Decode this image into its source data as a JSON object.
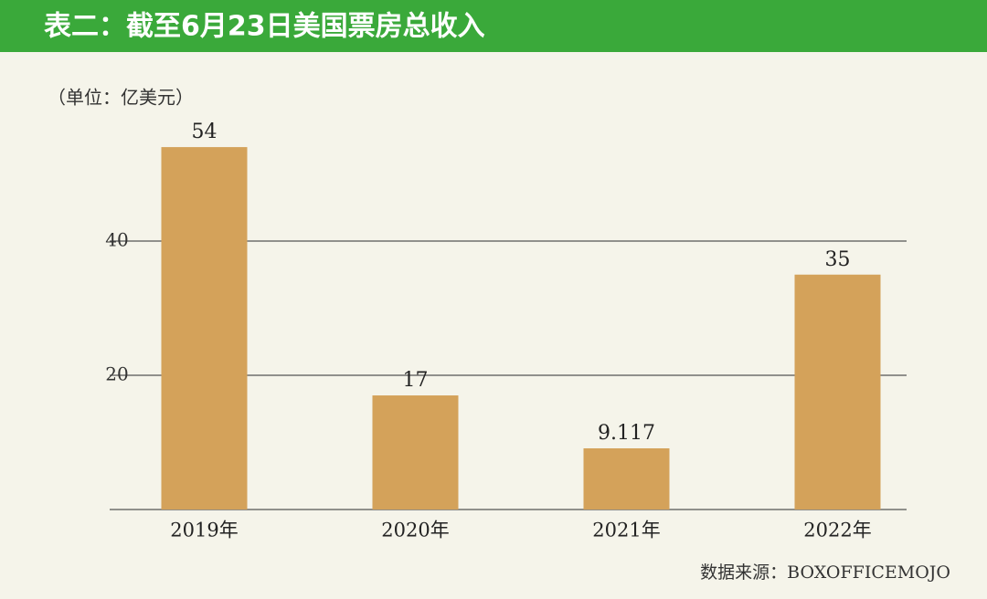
{
  "chart_data": {
    "type": "bar",
    "title": "表二：截至6月23日美国票房总收入",
    "unit_label": "（单位：亿美元）",
    "source": "数据来源：BOXOFFICEMOJO",
    "categories": [
      "2019年",
      "2020年",
      "2021年",
      "2022年"
    ],
    "values": [
      54,
      17,
      9.117,
      35
    ],
    "color": "#d4a25a",
    "ylim": [
      0,
      60
    ],
    "yticks": [
      20,
      40
    ],
    "grid": true
  }
}
